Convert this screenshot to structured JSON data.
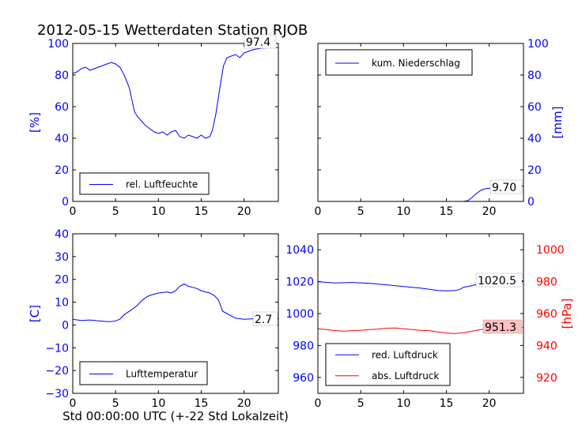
{
  "figure": {
    "title": "2012-05-15 Wetterdaten Station RJOB",
    "xlabel": "Std 00:00:00 UTC (+-22 Std Lokalzeit)"
  },
  "colors": {
    "axis_blue": "#0000ff",
    "axis_red": "#ff0000",
    "last_box_red": "#ffc0c0"
  },
  "chart_data": [
    {
      "id": "humidity",
      "type": "line",
      "xlim": [
        0,
        24
      ],
      "xticks": [
        0,
        5,
        10,
        15,
        20
      ],
      "ylim": [
        0,
        100
      ],
      "yticks": [
        0,
        20,
        40,
        60,
        80,
        100
      ],
      "ylabel": "[%]",
      "yaxis_side": "left",
      "legend_placement": "lower-left",
      "grid": false,
      "series": [
        {
          "name": "rel. Luftfeuchte",
          "color": "#0000ff",
          "last_label": "97.4",
          "x": [
            0,
            0.5,
            1,
            1.5,
            2,
            2.5,
            3,
            3.5,
            4,
            4.5,
            5,
            5.5,
            6,
            6.3,
            6.6,
            7,
            7.2,
            7.5,
            8,
            8.5,
            9,
            9.5,
            10,
            10.5,
            11,
            11.5,
            12,
            12.5,
            13,
            13.5,
            14,
            14.5,
            15,
            15.5,
            16,
            16.3,
            16.7,
            17,
            17.3,
            17.6,
            18,
            18.5,
            19,
            19.5,
            20,
            20.5,
            21,
            22,
            23,
            24
          ],
          "y": [
            81,
            82,
            84,
            85,
            83,
            84,
            85,
            86,
            87,
            88,
            87,
            85,
            80,
            76,
            72,
            62,
            57,
            54,
            51,
            48,
            46,
            44,
            43,
            44,
            42,
            44,
            45,
            41,
            40,
            42,
            41,
            40,
            42,
            40,
            41,
            45,
            55,
            66,
            76,
            86,
            91,
            92,
            93,
            91,
            94,
            95,
            96,
            97,
            97.4,
            97.4
          ]
        }
      ]
    },
    {
      "id": "precip",
      "type": "line",
      "xlim": [
        0,
        24
      ],
      "xticks": [
        0,
        5,
        10,
        15,
        20
      ],
      "ylim": [
        0,
        100
      ],
      "yticks": [
        0,
        20,
        40,
        60,
        80,
        100
      ],
      "ylabel": "[mm]",
      "yaxis_side": "right",
      "legend_placement": "top-left",
      "grid": false,
      "series": [
        {
          "name": "kum. Niederschlag",
          "color": "#0000ff",
          "last_label": "9.70",
          "x": [
            0,
            17,
            17.5,
            18,
            18.5,
            19,
            19.5,
            20,
            21,
            22,
            23,
            24
          ],
          "y": [
            0,
            0,
            0.5,
            2.5,
            5,
            7,
            8,
            8.3,
            8.6,
            9,
            9.5,
            9.7
          ]
        }
      ]
    },
    {
      "id": "temperature",
      "type": "line",
      "xlim": [
        0,
        24
      ],
      "xticks": [
        0,
        5,
        10,
        15,
        20
      ],
      "ylim": [
        -30,
        40
      ],
      "yticks": [
        -30,
        -20,
        -10,
        0,
        10,
        20,
        30,
        40
      ],
      "ylabel": "[C]",
      "yaxis_side": "left",
      "legend_placement": "lower-left",
      "grid": false,
      "series": [
        {
          "name": "Lufttemperatur",
          "color": "#0000ff",
          "last_label": "2.7",
          "x": [
            0,
            1,
            2,
            3,
            4,
            4.5,
            5,
            5.5,
            6,
            7,
            7.5,
            8,
            8.5,
            9,
            10,
            11,
            11.5,
            12,
            12.5,
            13,
            13.5,
            14,
            14.5,
            15,
            15.5,
            16,
            16.5,
            17,
            17.5,
            18,
            19,
            20,
            21,
            22,
            23,
            24
          ],
          "y": [
            2.5,
            2,
            2.2,
            1.8,
            1.5,
            1.5,
            1.8,
            2.5,
            4.5,
            7,
            8.5,
            10.5,
            12,
            13,
            14,
            14.5,
            14,
            15,
            17,
            18,
            17,
            16.5,
            16,
            15,
            14.5,
            14,
            13,
            11,
            6,
            5,
            3,
            2.5,
            2.7,
            2.7,
            2.7,
            2.7
          ]
        }
      ]
    },
    {
      "id": "pressure",
      "type": "line",
      "xlim": [
        0,
        24
      ],
      "xticks": [
        0,
        5,
        10,
        15,
        20
      ],
      "ylim": [
        950,
        1050
      ],
      "yticks": [
        960,
        980,
        1000,
        1020,
        1040
      ],
      "y2lim": [
        910,
        1010
      ],
      "y2ticks": [
        920,
        940,
        960,
        980,
        1000
      ],
      "y2label": "[hPa]",
      "yaxis_side": "both",
      "legend_placement": "lower-left",
      "grid": false,
      "series": [
        {
          "name": "red. Luftdruck",
          "color": "#0000ff",
          "axis": "left",
          "last_label": "1020.5",
          "x": [
            0,
            2,
            4,
            6,
            8,
            10,
            12,
            14,
            15,
            16,
            16.5,
            17,
            18,
            19,
            20,
            21,
            22,
            23,
            24
          ],
          "y": [
            1020,
            1019.2,
            1019.5,
            1019,
            1018,
            1017,
            1016,
            1014.5,
            1014.2,
            1014.5,
            1015,
            1016.5,
            1017.5,
            1019,
            1020,
            1020.3,
            1020.5,
            1020.5,
            1020.5
          ]
        },
        {
          "name": "abs. Luftdruck",
          "color": "#ff0000",
          "axis": "right",
          "last_label": "951.3",
          "x": [
            0,
            1,
            2,
            3,
            4,
            5,
            6,
            7,
            8,
            9,
            10,
            11,
            12,
            13,
            14,
            15,
            16,
            17,
            18,
            19,
            20,
            21,
            22,
            23,
            24
          ],
          "y": [
            950.5,
            950,
            949.3,
            949,
            949.2,
            949.5,
            950,
            950.2,
            950.8,
            951,
            950.5,
            950,
            949.5,
            949.3,
            948.5,
            947.8,
            947.5,
            948,
            949,
            950,
            950.5,
            951,
            951.3,
            951.3,
            951.3
          ]
        }
      ]
    }
  ]
}
